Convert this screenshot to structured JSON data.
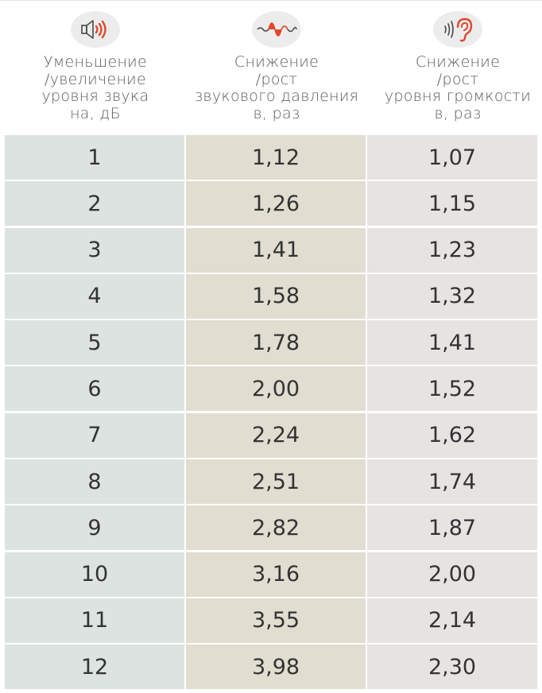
{
  "columns": [
    {
      "icon": "speaker-icon",
      "lines": [
        "Уменьшение",
        "/увеличение",
        "уровня звука",
        "на, дБ"
      ]
    },
    {
      "icon": "sound-wave-icon",
      "lines": [
        "Снижение",
        "/рост",
        "звукового давления",
        "в, раз"
      ]
    },
    {
      "icon": "ear-icon",
      "lines": [
        "Снижение",
        "/рост",
        "уровня громкости",
        "в, раз"
      ]
    }
  ],
  "rows": [
    [
      "1",
      "1,12",
      "1,07"
    ],
    [
      "2",
      "1,26",
      "1,15"
    ],
    [
      "3",
      "1,41",
      "1,23"
    ],
    [
      "4",
      "1,58",
      "1,32"
    ],
    [
      "5",
      "1,78",
      "1,41"
    ],
    [
      "6",
      "2,00",
      "1,52"
    ],
    [
      "7",
      "2,24",
      "1,62"
    ],
    [
      "8",
      "2,51",
      "1,74"
    ],
    [
      "9",
      "2,82",
      "1,87"
    ],
    [
      "10",
      "3,16",
      "2,00"
    ],
    [
      "11",
      "3,55",
      "2,14"
    ],
    [
      "12",
      "3,98",
      "2,30"
    ]
  ],
  "colors": {
    "accent": "#e2482f",
    "col1_bg": "#dce3e1",
    "col2_bg": "#e1ddd1",
    "col3_bg": "#e7e3e2",
    "icon_bg": "#ececec"
  }
}
